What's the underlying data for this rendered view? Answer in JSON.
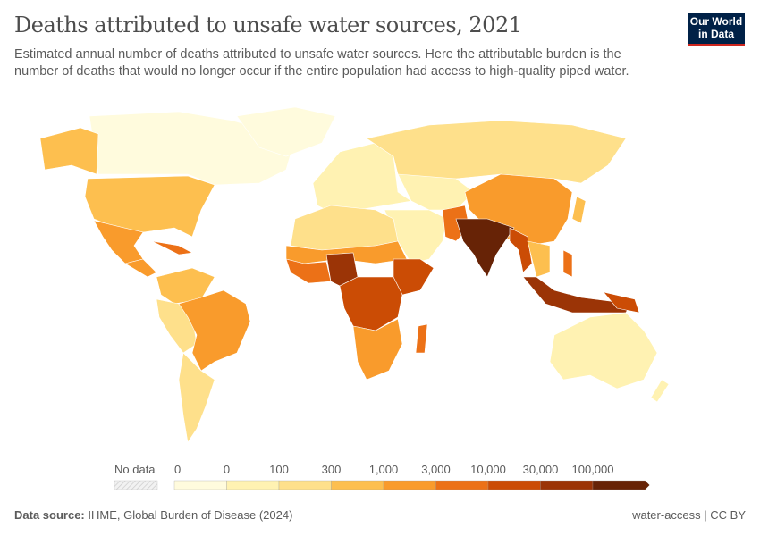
{
  "header": {
    "title": "Deaths attributed to unsafe water sources, 2021",
    "subtitle": "Estimated annual number of deaths attributed to unsafe water sources. Here the attributable burden is the number of deaths that would no longer occur if the entire population had access to high-quality piped water.",
    "logo": "Our World in Data"
  },
  "legend": {
    "no_data_label": "No data",
    "no_data_color": "#eeeeee",
    "bins": [
      {
        "label_start": "0",
        "color": "#fffbdd"
      },
      {
        "label_start": "0",
        "color": "#fff2b2"
      },
      {
        "label_start": "100",
        "color": "#fee08b"
      },
      {
        "label_start": "300",
        "color": "#fdbf4f"
      },
      {
        "label_start": "1,000",
        "color": "#f99b2c"
      },
      {
        "label_start": "3,000",
        "color": "#ec7117"
      },
      {
        "label_start": "10,000",
        "color": "#cb4c05"
      },
      {
        "label_start": "30,000",
        "color": "#9b3406"
      },
      {
        "label_start": "100,000",
        "color": "#672306"
      }
    ]
  },
  "regions": [
    {
      "name": "Canada",
      "bin": 0
    },
    {
      "name": "Greenland",
      "bin": 0
    },
    {
      "name": "Alaska",
      "bin": 3
    },
    {
      "name": "United States",
      "bin": 3
    },
    {
      "name": "Mexico",
      "bin": 4
    },
    {
      "name": "Central America",
      "bin": 4
    },
    {
      "name": "Cuba/Haiti",
      "bin": 5
    },
    {
      "name": "Colombia/Venezuela",
      "bin": 3
    },
    {
      "name": "Peru/Ecuador/Bolivia",
      "bin": 2
    },
    {
      "name": "Brazil",
      "bin": 4
    },
    {
      "name": "Southern Cone",
      "bin": 2
    },
    {
      "name": "Europe",
      "bin": 1
    },
    {
      "name": "Russia",
      "bin": 2
    },
    {
      "name": "Central Asia",
      "bin": 1
    },
    {
      "name": "Middle East",
      "bin": 1
    },
    {
      "name": "Pakistan/Afghanistan",
      "bin": 5
    },
    {
      "name": "China",
      "bin": 4
    },
    {
      "name": "Japan",
      "bin": 3
    },
    {
      "name": "India",
      "bin": 8
    },
    {
      "name": "Bangladesh/Myanmar",
      "bin": 6
    },
    {
      "name": "Southeast Asia",
      "bin": 3
    },
    {
      "name": "Philippines",
      "bin": 5
    },
    {
      "name": "Indonesia",
      "bin": 7
    },
    {
      "name": "Papua New Guinea",
      "bin": 6
    },
    {
      "name": "Australia",
      "bin": 1
    },
    {
      "name": "New Zealand",
      "bin": 1
    },
    {
      "name": "North Africa",
      "bin": 2
    },
    {
      "name": "Sahel",
      "bin": 4
    },
    {
      "name": "West Africa",
      "bin": 5
    },
    {
      "name": "Nigeria",
      "bin": 7
    },
    {
      "name": "Ethiopia/Somalia",
      "bin": 6
    },
    {
      "name": "Central Africa",
      "bin": 6
    },
    {
      "name": "Southern Africa",
      "bin": 4
    },
    {
      "name": "Madagascar",
      "bin": 5
    }
  ],
  "footer": {
    "source_label": "Data source:",
    "source": "IHME, Global Burden of Disease (2024)",
    "right": "water-access | CC BY"
  }
}
